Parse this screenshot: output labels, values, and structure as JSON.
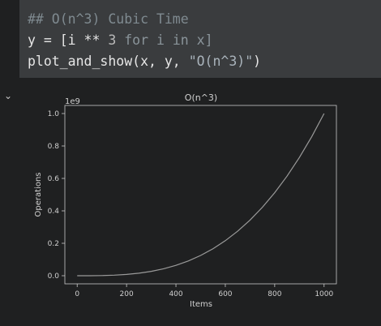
{
  "code": {
    "comment": "## O(n^3) Cubic Time",
    "line2": {
      "prefix": "y = [i ",
      "op": "**",
      "num": " 3",
      "rest": " for i in x]"
    },
    "line3": {
      "prefix": "plot_and_show(x, y, ",
      "string": "\"O(n^3)\"",
      "suffix": ")"
    }
  },
  "output": {
    "toggle_icon": "chevron-down-icon",
    "toggle_glyph": "⌄"
  },
  "chart_data": {
    "type": "line",
    "title": "O(n^3)",
    "xlabel": "Items",
    "ylabel": "Operations",
    "offset_label": "1e9",
    "xlim": [
      -50,
      1050
    ],
    "ylim": [
      -0.05,
      1.05
    ],
    "xticks": [
      0,
      200,
      400,
      600,
      800,
      1000
    ],
    "yticks": [
      0.0,
      0.2,
      0.4,
      0.6,
      0.8,
      1.0
    ],
    "xtick_labels": [
      "0",
      "200",
      "400",
      "600",
      "800",
      "1000"
    ],
    "ytick_labels": [
      "0.0",
      "0.2",
      "0.4",
      "0.6",
      "0.8",
      "1.0"
    ],
    "series": [
      {
        "x": [
          0,
          50,
          100,
          150,
          200,
          250,
          300,
          350,
          400,
          450,
          500,
          550,
          600,
          650,
          700,
          750,
          800,
          850,
          900,
          950,
          1000
        ],
        "y": [
          0.0,
          0.000125,
          0.001,
          0.003375,
          0.008,
          0.015625,
          0.027,
          0.042875,
          0.064,
          0.091125,
          0.125,
          0.166375,
          0.216,
          0.274625,
          0.343,
          0.421875,
          0.512,
          0.614125,
          0.729,
          0.857375,
          1.0
        ]
      }
    ],
    "colors": {
      "line": "#9a9a9a",
      "axes": "#c8c8c8",
      "text": "#d0d0d0",
      "background": "#1f2021"
    },
    "grid": false,
    "legend": "none"
  }
}
